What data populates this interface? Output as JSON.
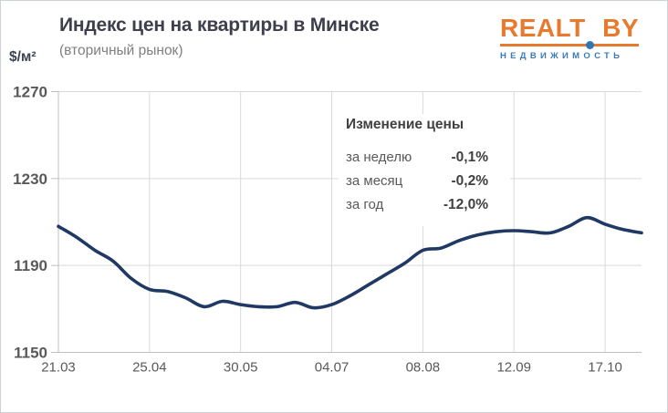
{
  "header": {
    "title": "Индекс цен на квартиры в Минске",
    "subtitle": "(вторичный рынок)",
    "unit_label": "$/м²"
  },
  "logo": {
    "word_left": "REALT",
    "word_right": "BY",
    "tagline": "НЕДВИЖИМОСТЬ",
    "orange": "#e87a2e",
    "blue": "#2f76b5"
  },
  "annotation": {
    "title": "Изменение цены",
    "rows": [
      {
        "label": "за неделю",
        "value": "-0,1%"
      },
      {
        "label": "за месяц",
        "value": "-0,2%"
      },
      {
        "label": "за год",
        "value": "-12,0%"
      }
    ]
  },
  "chart_data": {
    "type": "line",
    "title": "Индекс цен на квартиры в Минске (вторичный рынок)",
    "ylabel": "$/м²",
    "ylim": [
      1150,
      1270
    ],
    "yticks": [
      1270,
      1230,
      1190,
      1150
    ],
    "xticklabels": [
      "21.03",
      "25.04",
      "30.05",
      "04.07",
      "08.08",
      "12.09",
      "17.10"
    ],
    "x_tick_every_n_points": 5,
    "grid": true,
    "legend": "none",
    "line_color": "#1f3864",
    "grid_color": "#d9d9d9",
    "axis_color": "#bfbfbf",
    "series": [
      {
        "name": "Индекс цен, $/м²",
        "x_weekly_dates": [
          "21.03",
          "28.03",
          "04.04",
          "11.04",
          "18.04",
          "25.04",
          "02.05",
          "09.05",
          "16.05",
          "23.05",
          "30.05",
          "06.06",
          "13.06",
          "20.06",
          "27.06",
          "04.07",
          "11.07",
          "18.07",
          "25.07",
          "01.08",
          "08.08",
          "15.08",
          "22.08",
          "29.08",
          "05.09",
          "12.09",
          "19.09",
          "26.09",
          "03.10",
          "10.10",
          "17.10",
          "24.10",
          "31.10"
        ],
        "values": [
          1208,
          1203,
          1197,
          1192,
          1184,
          1179,
          1178,
          1175,
          1171,
          1173.5,
          1172,
          1171,
          1171,
          1173,
          1170.5,
          1172,
          1176,
          1181,
          1186,
          1191,
          1197,
          1198,
          1201.5,
          1204,
          1205.5,
          1206,
          1205.5,
          1205,
          1208,
          1212,
          1209,
          1206.5,
          1205
        ]
      }
    ]
  }
}
